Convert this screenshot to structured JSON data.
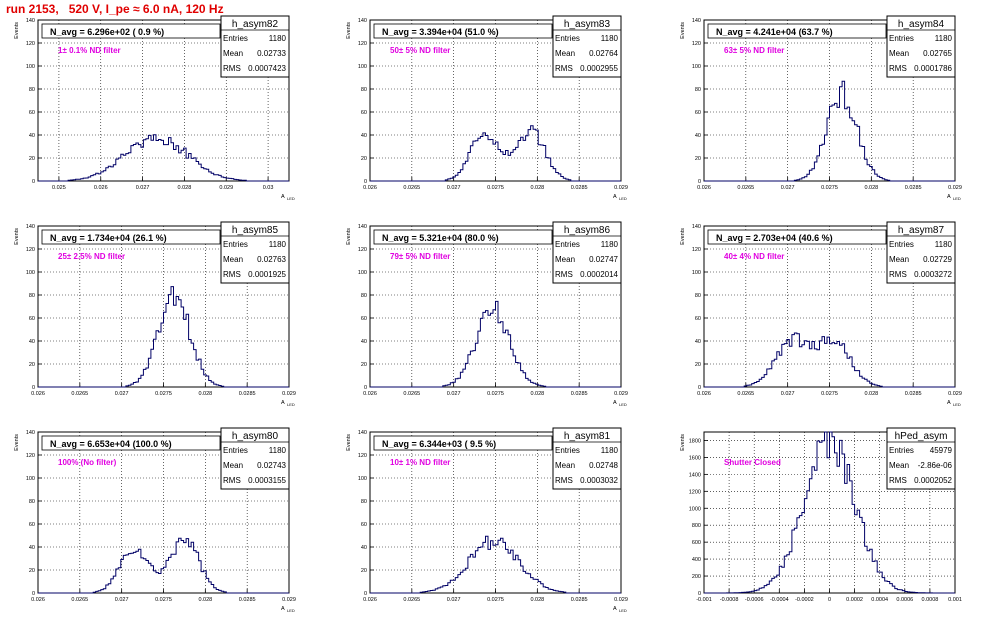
{
  "page_title": "run 2153,   520 V, I_pe ≈ 6.0 nA, 120 Hz",
  "stats_labels": {
    "entries": "Entries",
    "mean": "Mean",
    "rms": "RMS"
  },
  "chart_data": [
    {
      "type": "bar",
      "name": "h_asym82",
      "y_label": "Events",
      "x_label": "A_LED",
      "navg": "N_avg = 6.296e+02 ( 0.9 %)",
      "filter": "1± 0.1% ND filter",
      "entries": "1180",
      "mean": "0.02733",
      "rms": "0.0007423",
      "xlim": [
        0.0245,
        0.0305
      ],
      "ylim": [
        0,
        140
      ],
      "x_ticks": [
        "0.025",
        "0.026",
        "0.027",
        "0.028",
        "0.029",
        "0.03"
      ],
      "y_ticks": [
        "0",
        "20",
        "40",
        "60",
        "80",
        "100",
        "120",
        "140"
      ],
      "peaks": [
        [
          0.02733,
          0.00074,
          38
        ]
      ]
    },
    {
      "type": "bar",
      "name": "h_asym83",
      "y_label": "Events",
      "x_label": "A_LED",
      "navg": "N_avg = 3.394e+04 (51.0 %)",
      "filter": "50± 5% ND filter",
      "entries": "1180",
      "mean": "0.02764",
      "rms": "0.0002955",
      "xlim": [
        0.026,
        0.029
      ],
      "ylim": [
        0,
        140
      ],
      "x_ticks": [
        "0.026",
        "0.0265",
        "0.027",
        "0.0275",
        "0.028",
        "0.0285",
        "0.029"
      ],
      "y_ticks": [
        "0",
        "20",
        "40",
        "60",
        "80",
        "100",
        "120",
        "140"
      ],
      "peaks": [
        [
          0.02738,
          0.00017,
          43
        ],
        [
          0.02792,
          0.00017,
          43
        ]
      ]
    },
    {
      "type": "bar",
      "name": "h_asym84",
      "y_label": "Events",
      "x_label": "A_LED",
      "navg": "N_avg = 4.241e+04 (63.7 %)",
      "filter": "63± 5% ND filter",
      "entries": "1180",
      "mean": "0.02765",
      "rms": "0.0001786",
      "xlim": [
        0.026,
        0.029
      ],
      "ylim": [
        0,
        140
      ],
      "x_ticks": [
        "0.026",
        "0.0265",
        "0.027",
        "0.0275",
        "0.028",
        "0.0285",
        "0.029"
      ],
      "y_ticks": [
        "0",
        "20",
        "40",
        "60",
        "80",
        "100",
        "120",
        "140"
      ],
      "peaks": [
        [
          0.02765,
          0.00018,
          76
        ]
      ]
    },
    {
      "type": "bar",
      "name": "h_asym85",
      "y_label": "Events",
      "x_label": "A_LED",
      "navg": "N_avg = 1.734e+04 (26.1 %)",
      "filter": "25± 2.5% ND filter",
      "entries": "1180",
      "mean": "0.02763",
      "rms": "0.0001925",
      "xlim": [
        0.026,
        0.029
      ],
      "ylim": [
        0,
        140
      ],
      "x_ticks": [
        "0.026",
        "0.0265",
        "0.027",
        "0.0275",
        "0.028",
        "0.0285",
        "0.029"
      ],
      "y_ticks": [
        "0",
        "20",
        "40",
        "60",
        "80",
        "100",
        "120",
        "140"
      ],
      "peaks": [
        [
          0.02763,
          0.00019,
          78
        ]
      ]
    },
    {
      "type": "bar",
      "name": "h_asym86",
      "y_label": "Events",
      "x_label": "A_LED",
      "navg": "N_avg = 5.321e+04 (80.0 %)",
      "filter": "79± 5% ND filter",
      "entries": "1180",
      "mean": "0.02747",
      "rms": "0.0002014",
      "xlim": [
        0.026,
        0.029
      ],
      "ylim": [
        0,
        140
      ],
      "x_ticks": [
        "0.026",
        "0.0265",
        "0.027",
        "0.0275",
        "0.028",
        "0.0285",
        "0.029"
      ],
      "y_ticks": [
        "0",
        "20",
        "40",
        "60",
        "80",
        "100",
        "120",
        "140"
      ],
      "peaks": [
        [
          0.02747,
          0.0002,
          68
        ]
      ]
    },
    {
      "type": "bar",
      "name": "h_asym87",
      "y_label": "Events",
      "x_label": "A_LED",
      "navg": "N_avg = 2.703e+04 (40.6 %)",
      "filter": "40± 4% ND filter",
      "entries": "1180",
      "mean": "0.02729",
      "rms": "0.0003272",
      "xlim": [
        0.026,
        0.029
      ],
      "ylim": [
        0,
        140
      ],
      "x_ticks": [
        "0.026",
        "0.0265",
        "0.027",
        "0.0275",
        "0.028",
        "0.0285",
        "0.029"
      ],
      "y_ticks": [
        "0",
        "20",
        "40",
        "60",
        "80",
        "100",
        "120",
        "140"
      ],
      "peaks": [
        [
          0.02705,
          0.0002,
          40
        ],
        [
          0.02755,
          0.0002,
          40
        ]
      ]
    },
    {
      "type": "bar",
      "name": "h_asym80",
      "y_label": "Events",
      "x_label": "A_LED",
      "navg": "N_avg = 6.653e+04 (100.0 %)",
      "filter": "100% (No filter)",
      "entries": "1180",
      "mean": "0.02743",
      "rms": "0.0003155",
      "xlim": [
        0.026,
        0.029
      ],
      "ylim": [
        0,
        140
      ],
      "x_ticks": [
        "0.026",
        "0.0265",
        "0.027",
        "0.0275",
        "0.028",
        "0.0285",
        "0.029"
      ],
      "y_ticks": [
        "0",
        "20",
        "40",
        "60",
        "80",
        "100",
        "120",
        "140"
      ],
      "peaks": [
        [
          0.02715,
          0.00017,
          38
        ],
        [
          0.02775,
          0.00017,
          48
        ]
      ]
    },
    {
      "type": "bar",
      "name": "h_asym81",
      "y_label": "Events",
      "x_label": "A_LED",
      "navg": "N_avg = 6.344e+03 ( 9.5 %)",
      "filter": "10± 1% ND filter",
      "entries": "1180",
      "mean": "0.02748",
      "rms": "0.0003032",
      "xlim": [
        0.026,
        0.029
      ],
      "ylim": [
        0,
        140
      ],
      "x_ticks": [
        "0.026",
        "0.0265",
        "0.027",
        "0.0275",
        "0.028",
        "0.0285",
        "0.029"
      ],
      "y_ticks": [
        "0",
        "20",
        "40",
        "60",
        "80",
        "100",
        "120",
        "140"
      ],
      "peaks": [
        [
          0.02748,
          0.0003,
          45
        ]
      ]
    },
    {
      "type": "bar",
      "name": "hPed_asym",
      "y_label": "Events",
      "x_label": "",
      "navg": "",
      "filter": "Shutter Closed",
      "entries": "45979",
      "mean": "-2.86e-06",
      "rms": "0.0002052",
      "xlim": [
        -0.001,
        0.001
      ],
      "ylim": [
        0,
        1900
      ],
      "x_ticks": [
        "-0.001",
        "-0.0008",
        "-0.0006",
        "-0.0004",
        "-0.0002",
        "0",
        "0.0002",
        "0.0004",
        "0.0006",
        "0.0008",
        "0.001"
      ],
      "y_ticks": [
        "0",
        "200",
        "400",
        "600",
        "800",
        "1000",
        "1200",
        "1400",
        "1600",
        "1800"
      ],
      "peaks": [
        [
          -2.9e-06,
          0.000205,
          1760
        ]
      ]
    }
  ]
}
